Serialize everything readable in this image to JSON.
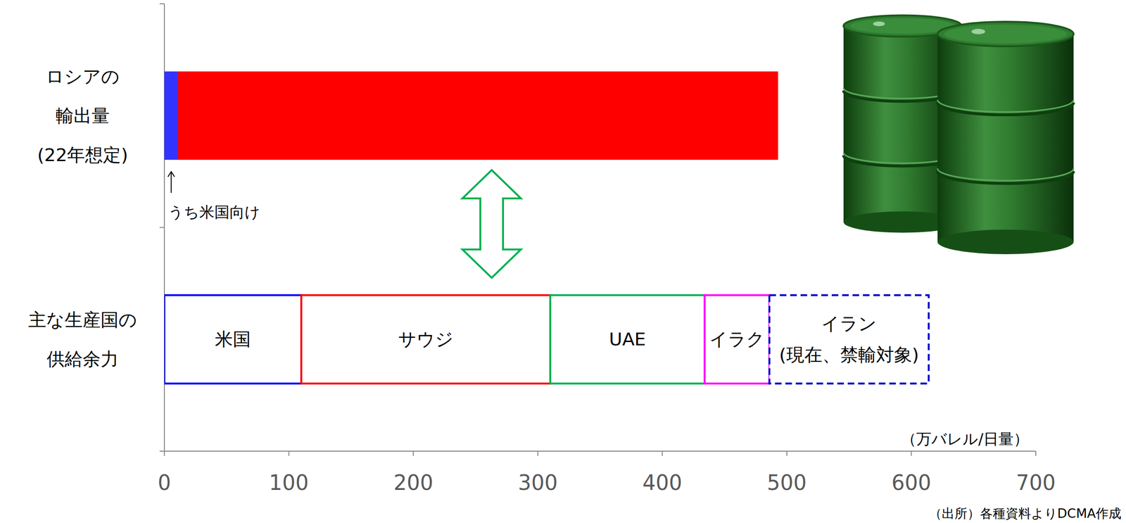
{
  "chart_data": {
    "type": "bar",
    "orientation": "horizontal",
    "stacked": true,
    "categories": [
      "ロシアの\n輸出量\n(22年想定)",
      "主な生産国の\n供給余力"
    ],
    "series": [
      {
        "name": "うち米国向け",
        "color": "#3333ff",
        "values": [
          11,
          null
        ]
      },
      {
        "color": "#ff0000",
        "values": [
          482,
          null
        ]
      },
      {
        "name": "米国",
        "color": "#0000ff",
        "values": [
          null,
          110
        ]
      },
      {
        "name": "サウジ",
        "color": "#ff0000",
        "values": [
          null,
          200
        ]
      },
      {
        "name": "UAE",
        "color": "#00b050",
        "values": [
          null,
          124
        ]
      },
      {
        "name": "イラク",
        "color": "#ff00ff",
        "values": [
          null,
          52
        ]
      },
      {
        "name": "イラン\n(現在、禁輸対象)",
        "color": "#0000cc",
        "line_style": "dashed",
        "values": [
          null,
          128
        ]
      }
    ],
    "x_label": "（万バレル/日量）",
    "xlim": [
      0,
      700
    ],
    "xticks": [
      0,
      100,
      200,
      300,
      400,
      500,
      600,
      700
    ],
    "grid": false,
    "source": "（出所）各種資料よりDCMA作成"
  }
}
